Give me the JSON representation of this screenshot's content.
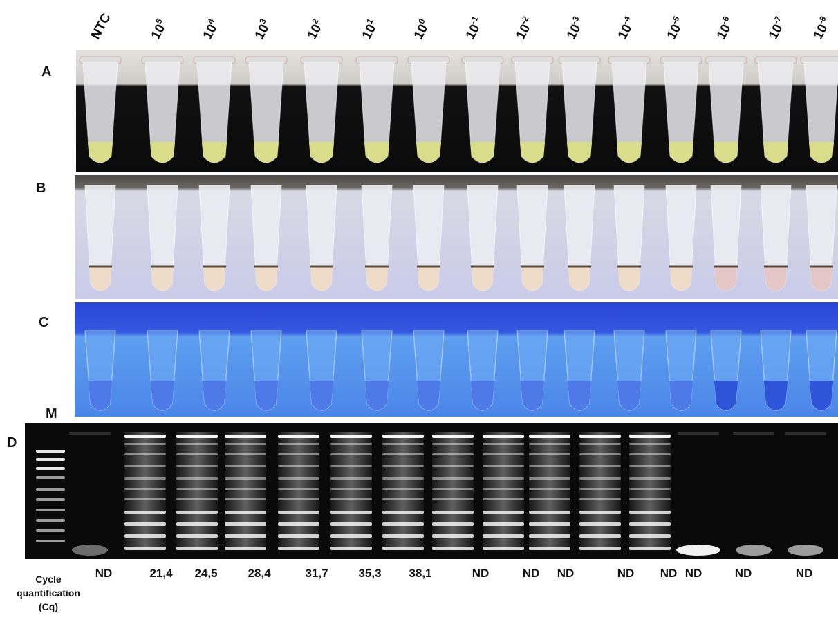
{
  "columns": [
    {
      "base": "NTC"
    },
    {
      "base": "10",
      "exp": "5"
    },
    {
      "base": "10",
      "exp": "4"
    },
    {
      "base": "10",
      "exp": "3"
    },
    {
      "base": "10",
      "exp": "2"
    },
    {
      "base": "10",
      "exp": "1"
    },
    {
      "base": "10",
      "exp": "0"
    },
    {
      "base": "10",
      "exp": "-1"
    },
    {
      "base": "10",
      "exp": "-2"
    },
    {
      "base": "10",
      "exp": "-3"
    },
    {
      "base": "10",
      "exp": "-4"
    },
    {
      "base": "10",
      "exp": "-5"
    },
    {
      "base": "10",
      "exp": "-6"
    },
    {
      "base": "10",
      "exp": "-7"
    },
    {
      "base": "10",
      "exp": "-8"
    }
  ],
  "panels": {
    "a": "A",
    "b": "B",
    "c": "C",
    "d": "D",
    "marker": "M"
  },
  "cq_label": [
    "Cycle",
    "quantification",
    "(Cq)"
  ],
  "cq_values": [
    "ND",
    "21,4",
    "24,5",
    "28,4",
    "31,7",
    "35,3",
    "38,1",
    "ND",
    "ND",
    "ND",
    "ND",
    "ND",
    "ND",
    "ND",
    "ND"
  ]
}
